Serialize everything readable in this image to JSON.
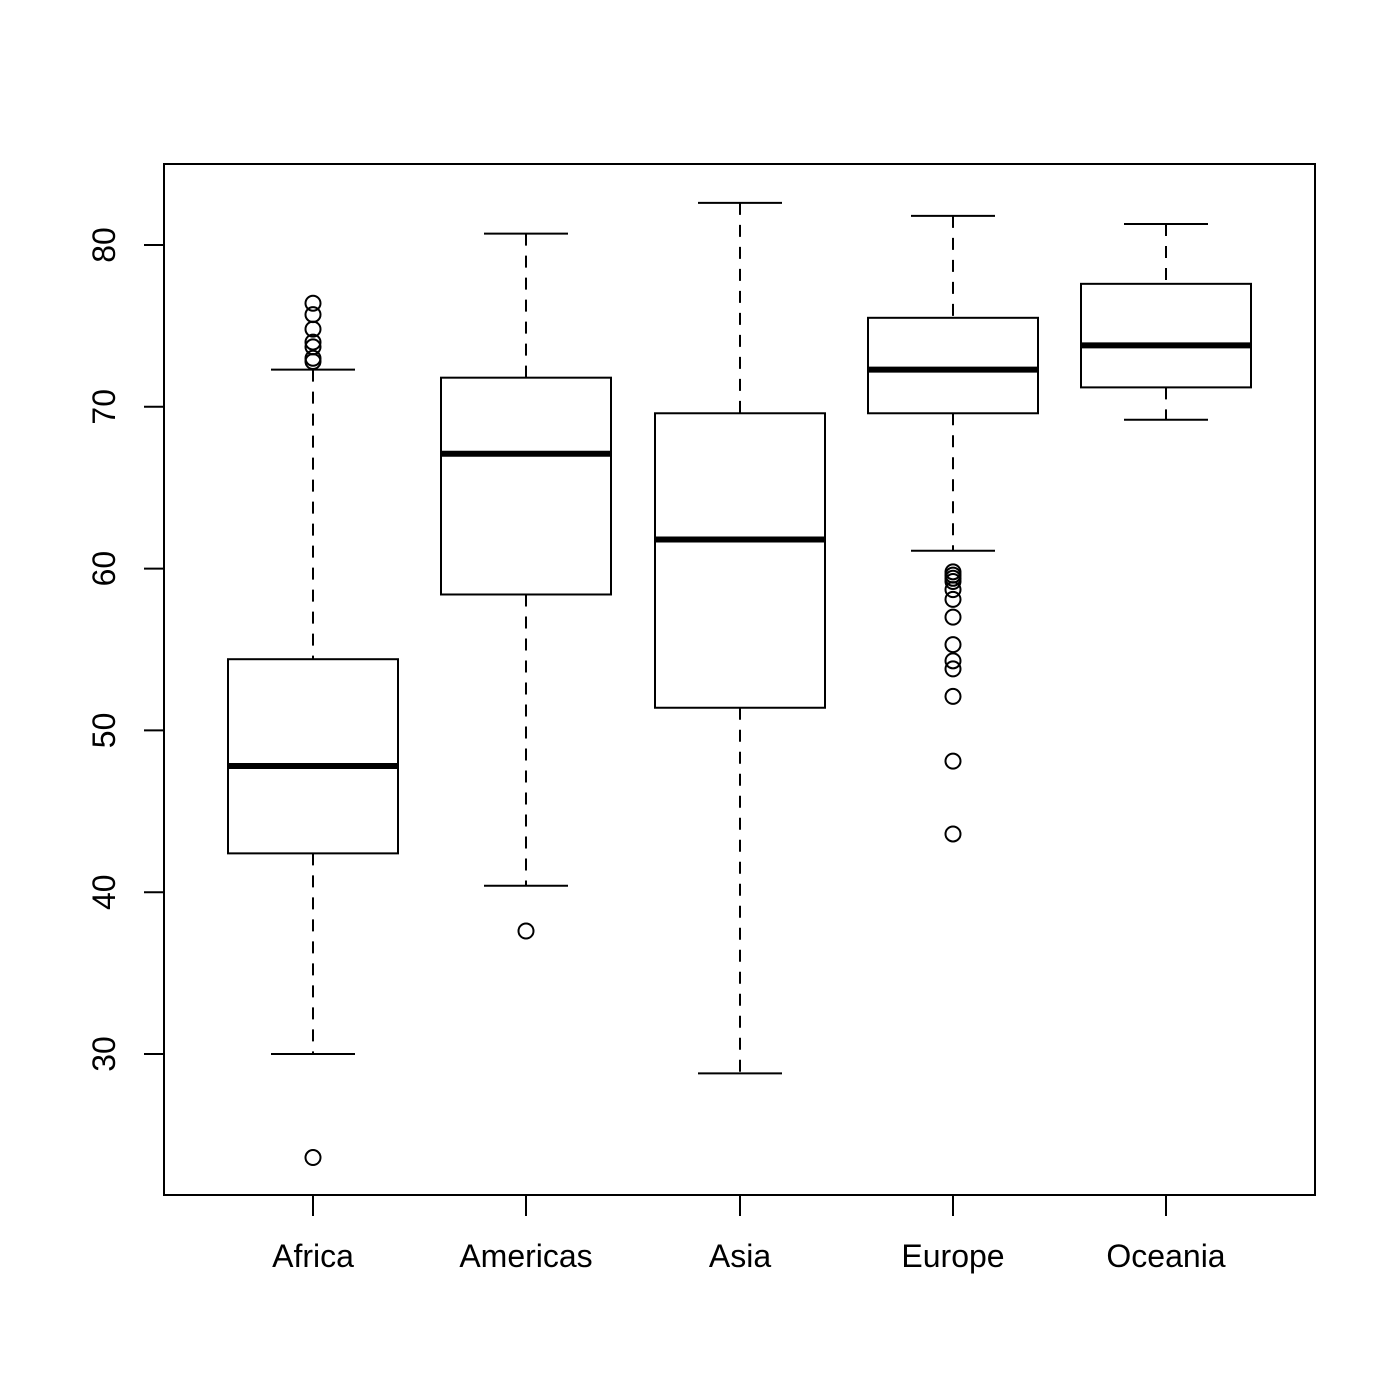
{
  "chart_data": {
    "type": "boxplot",
    "title": "",
    "xlabel": "",
    "ylabel": "",
    "categories": [
      "Africa",
      "Americas",
      "Asia",
      "Europe",
      "Oceania"
    ],
    "ylim": [
      21.3,
      85.0
    ],
    "yticks": [
      30,
      40,
      50,
      60,
      70,
      80
    ],
    "grid": false,
    "legend": null,
    "boxes": [
      {
        "name": "Africa",
        "whisker_low": 30.0,
        "q1": 42.4,
        "median": 47.8,
        "q3": 54.4,
        "whisker_high": 72.3,
        "outliers": [
          76.4,
          75.7,
          74.8,
          74.0,
          73.7,
          73.0,
          72.8,
          23.6
        ]
      },
      {
        "name": "Americas",
        "whisker_low": 40.4,
        "q1": 58.4,
        "median": 67.1,
        "q3": 71.8,
        "whisker_high": 80.7,
        "outliers": [
          37.6
        ]
      },
      {
        "name": "Asia",
        "whisker_low": 28.8,
        "q1": 51.4,
        "median": 61.8,
        "q3": 69.6,
        "whisker_high": 82.6,
        "outliers": []
      },
      {
        "name": "Europe",
        "whisker_low": 61.1,
        "q1": 69.6,
        "median": 72.3,
        "q3": 75.5,
        "whisker_high": 81.8,
        "outliers": [
          59.8,
          59.6,
          59.4,
          59.2,
          58.7,
          58.1,
          57.0,
          55.3,
          54.3,
          53.8,
          52.1,
          48.1,
          43.6
        ]
      },
      {
        "name": "Oceania",
        "whisker_low": 69.2,
        "q1": 71.2,
        "median": 73.8,
        "q3": 77.6,
        "whisker_high": 81.3,
        "outliers": []
      }
    ]
  },
  "colors": {
    "stroke": "#000000",
    "background": "#ffffff"
  }
}
